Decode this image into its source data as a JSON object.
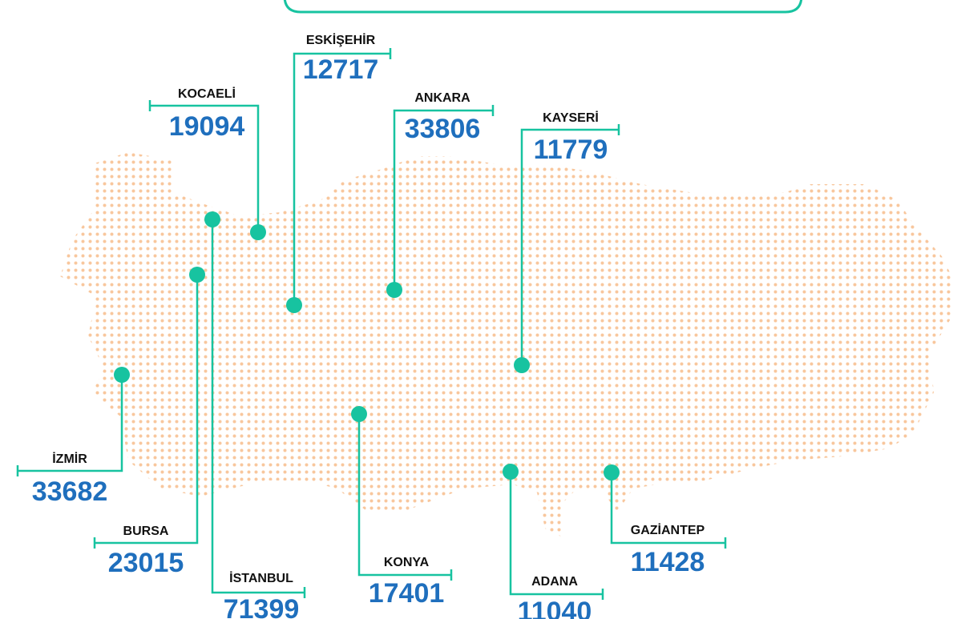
{
  "cities": [
    {
      "name": "ESKİŞEHİR",
      "value": 12717
    },
    {
      "name": "KOCAELİ",
      "value": 19094
    },
    {
      "name": "ANKARA",
      "value": 33806
    },
    {
      "name": "KAYSERİ",
      "value": 11779
    },
    {
      "name": "İZMİR",
      "value": 33682
    },
    {
      "name": "BURSA",
      "value": 23015
    },
    {
      "name": "İSTANBUL",
      "value": 71399
    },
    {
      "name": "KONYA",
      "value": 17401
    },
    {
      "name": "ADANA",
      "value": 11040
    },
    {
      "name": "GAZİANTEP",
      "value": 11428
    }
  ]
}
